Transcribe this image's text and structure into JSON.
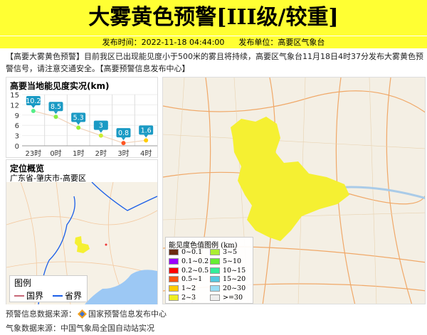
{
  "title": "大雾黄色预警[III级/较重]",
  "header": {
    "time_label": "发布时间：2022-11-18 04:44:00",
    "unit_label": "发布单位：高要区气象台"
  },
  "message": "【高要大雾黄色预警】目前我区已出现能见度小于500米的雾且将持续，高要区气象台11月18日4时37分发布大雾黄色预警信号，请注意交通安全。【高要预警信息发布中心】",
  "chart_data": {
    "type": "line",
    "title": "高要当地能见度实况(km)",
    "categories": [
      "23时",
      "0时",
      "1时",
      "2时",
      "3时",
      "4时"
    ],
    "values": [
      10.2,
      8.5,
      5.3,
      3,
      0.8,
      1.6
    ],
    "labels": [
      "10.2",
      "8.5",
      "5.3",
      "3",
      "0.8",
      "1.6"
    ],
    "yticks": [
      "0",
      "3",
      "6",
      "9",
      "12",
      "15"
    ],
    "ylim": [
      0,
      15
    ],
    "point_colors": [
      "#55ee88",
      "#88ee44",
      "#99ee33",
      "#ccee33",
      "#ff5522",
      "#ffcc00"
    ],
    "grid": true
  },
  "location": {
    "title": "定位概览",
    "region": "广东省-肇庆市-高要区",
    "legend_title": "图例",
    "legend_items": [
      {
        "label": "国界",
        "color": "#c86878"
      },
      {
        "label": "省界",
        "color": "#1a5ee8"
      }
    ]
  },
  "map_legend": {
    "title": "能见度色值图例 (km)",
    "items": [
      {
        "label": "0~0.1",
        "color": "#6b2a0f"
      },
      {
        "label": "3~5",
        "color": "#aaee33"
      },
      {
        "label": "0.1~0.2",
        "color": "#9a00ff"
      },
      {
        "label": "5~10",
        "color": "#66ee33"
      },
      {
        "label": "0.2~0.5",
        "color": "#ff0000"
      },
      {
        "label": "10~15",
        "color": "#33ee99"
      },
      {
        "label": "0.5~1",
        "color": "#ff5511"
      },
      {
        "label": "15~20",
        "color": "#55c8e0"
      },
      {
        "label": "1~2",
        "color": "#ffcc00"
      },
      {
        "label": "20~30",
        "color": "#99ddf5"
      },
      {
        "label": "2~3",
        "color": "#eeee22"
      },
      {
        "label": ">=30",
        "color": "#eeeeee"
      }
    ]
  },
  "footer": {
    "source1": "预警信息数据来源：",
    "source1_name": "国家预警信息发布中心",
    "source2": "气象数据来源：中国气象局全国自动站实况"
  },
  "colors": {
    "banner": "#ffff33",
    "region_fill": "#f5f032"
  }
}
